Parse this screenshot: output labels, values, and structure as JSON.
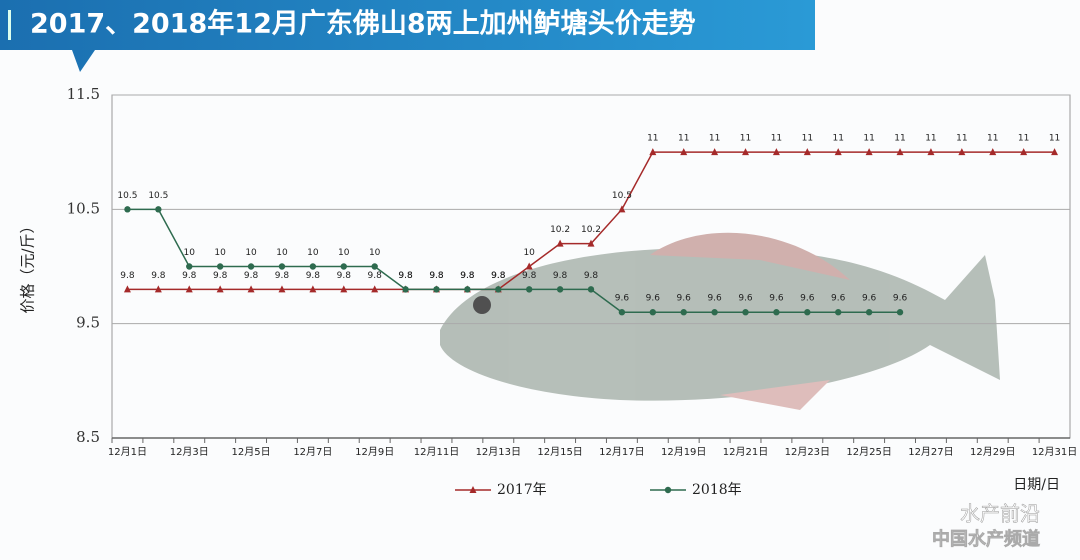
{
  "chart_data": {
    "type": "line",
    "title": "2017、2018年12月广东佛山8两上加州鲈塘头价走势",
    "y_label": "价格（元/斤）",
    "x_label": "日期/日",
    "annotations": [
      "水产前沿",
      "中国水产频道"
    ],
    "categories": [
      "12月1日",
      null,
      "12月3日",
      null,
      "12月5日",
      null,
      "12月7日",
      null,
      "12月9日",
      null,
      "12月11日",
      null,
      "12月13日",
      null,
      "12月15日",
      null,
      "12月17日",
      null,
      "12月19日",
      null,
      "12月21日",
      null,
      "12月23日",
      null,
      "12月25日",
      null,
      "12月27日",
      null,
      "12月29日",
      null,
      "12月31日"
    ],
    "series": [
      {
        "name": "2017年",
        "color": "#a52a2a",
        "marker": "triangle",
        "values": [
          9.8,
          9.8,
          9.8,
          9.8,
          9.8,
          9.8,
          9.8,
          9.8,
          9.8,
          9.8,
          9.8,
          9.8,
          9.8,
          10,
          10.2,
          10.2,
          10.5,
          11,
          11,
          11,
          11,
          11,
          11,
          11,
          11,
          11,
          11,
          11,
          11,
          11,
          11
        ]
      },
      {
        "name": "2018年",
        "color": "#2e6b4f",
        "marker": "circle",
        "values": [
          10.5,
          10.5,
          10,
          10,
          10,
          10,
          10,
          10,
          10,
          9.8,
          9.8,
          9.8,
          9.8,
          9.8,
          9.8,
          9.8,
          9.6,
          9.6,
          9.6,
          9.6,
          9.6,
          9.6,
          9.6,
          9.6,
          9.6,
          9.6,
          null,
          null,
          null,
          null,
          null
        ]
      }
    ],
    "ylim": [
      8.5,
      11.5
    ],
    "yticks": [
      8.5,
      9.5,
      10.5,
      11.5
    ],
    "grid": true,
    "legend": "bottom"
  }
}
